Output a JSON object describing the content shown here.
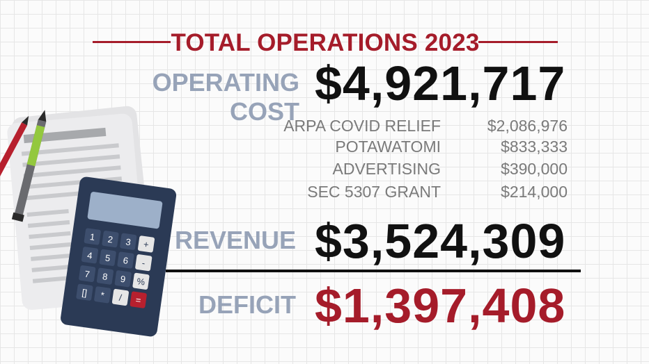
{
  "header": {
    "title": "TOTAL OPERATIONS 2023"
  },
  "operating_cost": {
    "label": "OPERATING COST",
    "value": "$4,921,717"
  },
  "breakdown": [
    {
      "name": "ARPA COVID RELIEF",
      "amount": "$2,086,976"
    },
    {
      "name": "POTAWATOMI",
      "amount": "$833,333"
    },
    {
      "name": "ADVERTISING",
      "amount": "$390,000"
    },
    {
      "name": "SEC 5307 GRANT",
      "amount": "$214,000"
    }
  ],
  "revenue": {
    "label": "REVENUE",
    "value": "$3,524,309"
  },
  "deficit": {
    "label": "DEFICIT",
    "value": "$1,397,408"
  },
  "calculator": {
    "keys": [
      "1",
      "2",
      "3",
      "+",
      "4",
      "5",
      "6",
      "-",
      "7",
      "8",
      "9",
      "%",
      "[]",
      "*",
      "/",
      "="
    ]
  },
  "colors": {
    "accent_red": "#a51c2a",
    "label_gray_blue": "#97a3b8",
    "text_dark": "#111111",
    "breakdown_gray": "#7a7a7a"
  }
}
